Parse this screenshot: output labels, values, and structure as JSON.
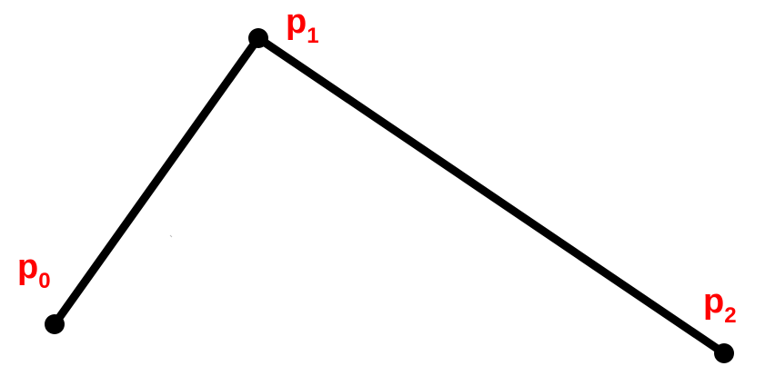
{
  "diagram": {
    "colors": {
      "background": "#ffffff",
      "line": "#000000",
      "point": "#000000",
      "label": "#ff0000"
    },
    "points": [
      {
        "id": "p0",
        "label": "p",
        "subscript": "0"
      },
      {
        "id": "p1",
        "label": "p",
        "subscript": "1"
      },
      {
        "id": "p2",
        "label": "p",
        "subscript": "2"
      }
    ],
    "segments": [
      {
        "from": "p0",
        "to": "p1"
      },
      {
        "from": "p1",
        "to": "p2"
      }
    ]
  }
}
